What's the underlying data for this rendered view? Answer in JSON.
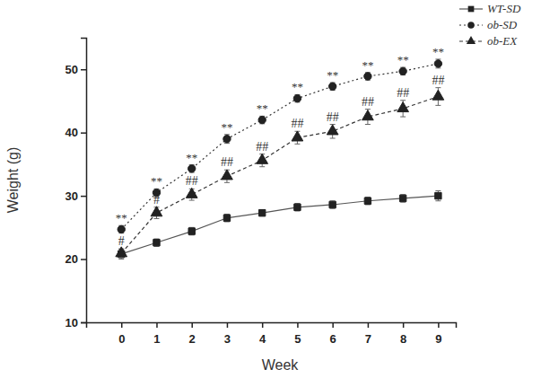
{
  "chart_data": {
    "type": "line",
    "x_label": "Week",
    "y_label": "Weight (g)",
    "x": [
      0,
      1,
      2,
      3,
      4,
      5,
      6,
      7,
      8,
      9
    ],
    "xlim": [
      -1,
      9.5
    ],
    "xticks": [
      0,
      1,
      2,
      3,
      4,
      5,
      6,
      7,
      8,
      9
    ],
    "ylim": [
      10,
      55
    ],
    "yticks": [
      10,
      20,
      30,
      40,
      50
    ],
    "grid": false,
    "legend": "upper right",
    "series": [
      {
        "name": "WT-SD",
        "color": "#555555",
        "marker": "square",
        "line_style": "solid",
        "values": [
          20.8,
          22.6,
          24.4,
          26.5,
          27.3,
          28.2,
          28.6,
          29.2,
          29.6,
          30.0
        ],
        "errors": [
          0.8,
          0.6,
          0.6,
          0.6,
          0.5,
          0.6,
          0.6,
          0.6,
          0.6,
          0.8
        ]
      },
      {
        "name": "ob-SD",
        "color": "#333333",
        "marker": "circle",
        "line_style": "dotted",
        "values": [
          24.7,
          30.5,
          34.3,
          39.0,
          42.0,
          45.4,
          47.3,
          48.9,
          49.7,
          50.9
        ],
        "errors": [
          0.6,
          0.6,
          0.6,
          0.7,
          0.6,
          0.6,
          0.6,
          0.6,
          0.6,
          0.7
        ],
        "annotations": [
          "**",
          "**",
          "**",
          "**",
          "**",
          "**",
          "**",
          "**",
          "**",
          "**"
        ]
      },
      {
        "name": "ob-EX",
        "color": "#333333",
        "marker": "triangle",
        "line_style": "dashed",
        "values": [
          20.9,
          27.3,
          30.2,
          33.1,
          35.6,
          39.2,
          40.2,
          42.5,
          43.8,
          45.7
        ],
        "errors": [
          0.7,
          0.9,
          0.9,
          1.0,
          1.0,
          1.0,
          1.1,
          1.2,
          1.3,
          1.4
        ],
        "annotations": [
          "#",
          "#",
          "##",
          "##",
          "##",
          "##",
          "##",
          "##",
          "##",
          "##"
        ]
      }
    ]
  }
}
